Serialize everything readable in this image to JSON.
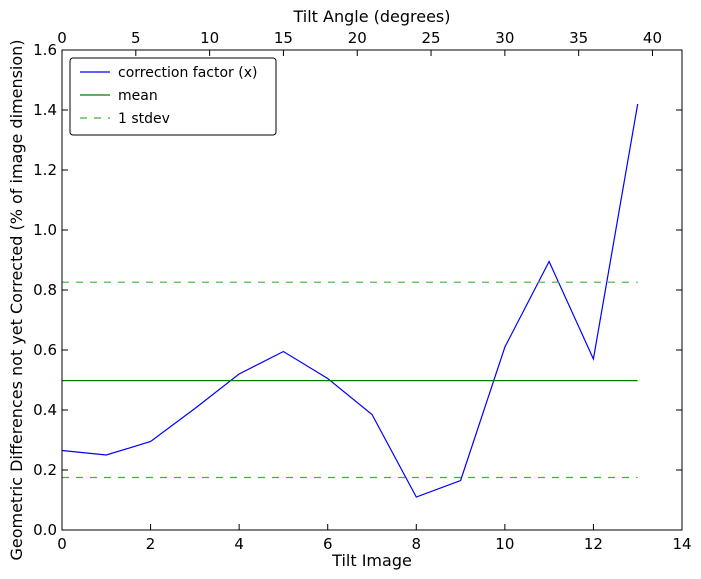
{
  "chart_data": {
    "type": "line",
    "xlabel": "Tilt Image",
    "ylabel": "Geometric Differences not yet Corrected (% of image dimension)",
    "top_xlabel": "Tilt Angle (degrees)",
    "xlim": [
      0,
      14
    ],
    "ylim": [
      0.0,
      1.6
    ],
    "top_xlim": [
      0,
      42
    ],
    "x_ticks": [
      "0",
      "2",
      "4",
      "6",
      "8",
      "10",
      "12",
      "14"
    ],
    "y_ticks": [
      "0.0",
      "0.2",
      "0.4",
      "0.6",
      "0.8",
      "1.0",
      "1.2",
      "1.4",
      "1.6"
    ],
    "top_ticks": [
      "0",
      "5",
      "10",
      "15",
      "20",
      "25",
      "30",
      "35",
      "40"
    ],
    "grid": false,
    "legend_position": "top-left",
    "series": [
      {
        "name": "correction factor (x)",
        "color": "#0000ff",
        "style": "solid",
        "x": [
          0,
          1,
          2,
          3,
          4,
          5,
          6,
          7,
          8,
          9,
          10,
          11,
          12,
          13
        ],
        "y": [
          0.265,
          0.25,
          0.295,
          0.405,
          0.52,
          0.595,
          0.505,
          0.385,
          0.11,
          0.165,
          0.61,
          0.895,
          0.57,
          1.42
        ]
      },
      {
        "name": "mean",
        "color": "#008000",
        "style": "solid",
        "x": [
          0,
          13
        ],
        "y": [
          0.498,
          0.498
        ]
      },
      {
        "name": "1 stdev",
        "color": "#3cb43c",
        "style": "dashed",
        "x": [
          0,
          13
        ],
        "y": [
          0.826,
          0.826
        ]
      },
      {
        "name": "",
        "color": "#3cb43c",
        "style": "dashed",
        "x": [
          0,
          13
        ],
        "y": [
          0.175,
          0.175
        ]
      }
    ]
  }
}
